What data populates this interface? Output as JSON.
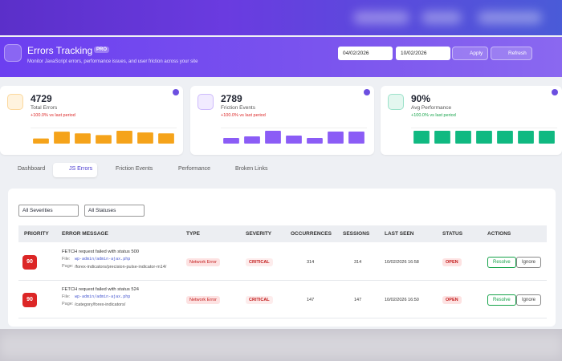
{
  "header": {
    "title": "Errors Tracking",
    "badge": "PRO",
    "subtitle": "Monitor JavaScript errors, performance issues, and user friction across your site",
    "date_from": "04/02/2026",
    "date_to": "10/02/2026",
    "apply": "Apply",
    "refresh": "Refresh"
  },
  "cards": [
    {
      "value": "4729",
      "label": "Total Errors",
      "change": "+100.0% vs last period",
      "color": "#f5a31a",
      "bars": [
        6,
        14,
        12,
        10,
        15,
        13,
        12
      ]
    },
    {
      "value": "2789",
      "label": "Friction Events",
      "change": "+100.0% vs last period",
      "color": "#8b5cf6",
      "bars": [
        7,
        9,
        16,
        10,
        7,
        15,
        15
      ]
    },
    {
      "value": "90%",
      "label": "Avg Performance",
      "change": "+100.0% vs last period",
      "color": "#10b981",
      "bars": [
        15,
        15,
        15,
        15,
        15,
        15,
        15
      ]
    }
  ],
  "tabs": [
    "Dashboard",
    "JS Errors",
    "Friction Events",
    "Performance",
    "Broken Links"
  ],
  "filters": [
    "All Severities",
    "All Statuses"
  ],
  "table": {
    "columns": [
      "PRIORITY",
      "ERROR MESSAGE",
      "TYPE",
      "SEVERITY",
      "OCCURRENCES",
      "SESSIONS",
      "LAST SEEN",
      "STATUS",
      "ACTIONS"
    ],
    "rows": [
      {
        "priority": "90",
        "message": "FETCH request failed with status 500",
        "file_label": "File:",
        "file": "wp-admin/admin-ajax.php",
        "page_label": "Page:",
        "page": "/forex-indicators/precision-pulse-indicator-m14/",
        "type": "Network Error",
        "severity": "CRITICAL",
        "occurrences": "314",
        "sessions": "314",
        "last_seen": "10/02/2026 16:58",
        "status": "OPEN",
        "actions": [
          "Resolve",
          "Ignore"
        ]
      },
      {
        "priority": "90",
        "message": "FETCH request failed with status 524",
        "file_label": "File:",
        "file": "wp-admin/admin-ajax.php",
        "page_label": "Page:",
        "page": "/category/forex-indicators/",
        "type": "Network Error",
        "severity": "CRITICAL",
        "occurrences": "147",
        "sessions": "147",
        "last_seen": "10/02/2026 16:50",
        "status": "OPEN",
        "actions": [
          "Resolve",
          "Ignore"
        ]
      }
    ]
  }
}
